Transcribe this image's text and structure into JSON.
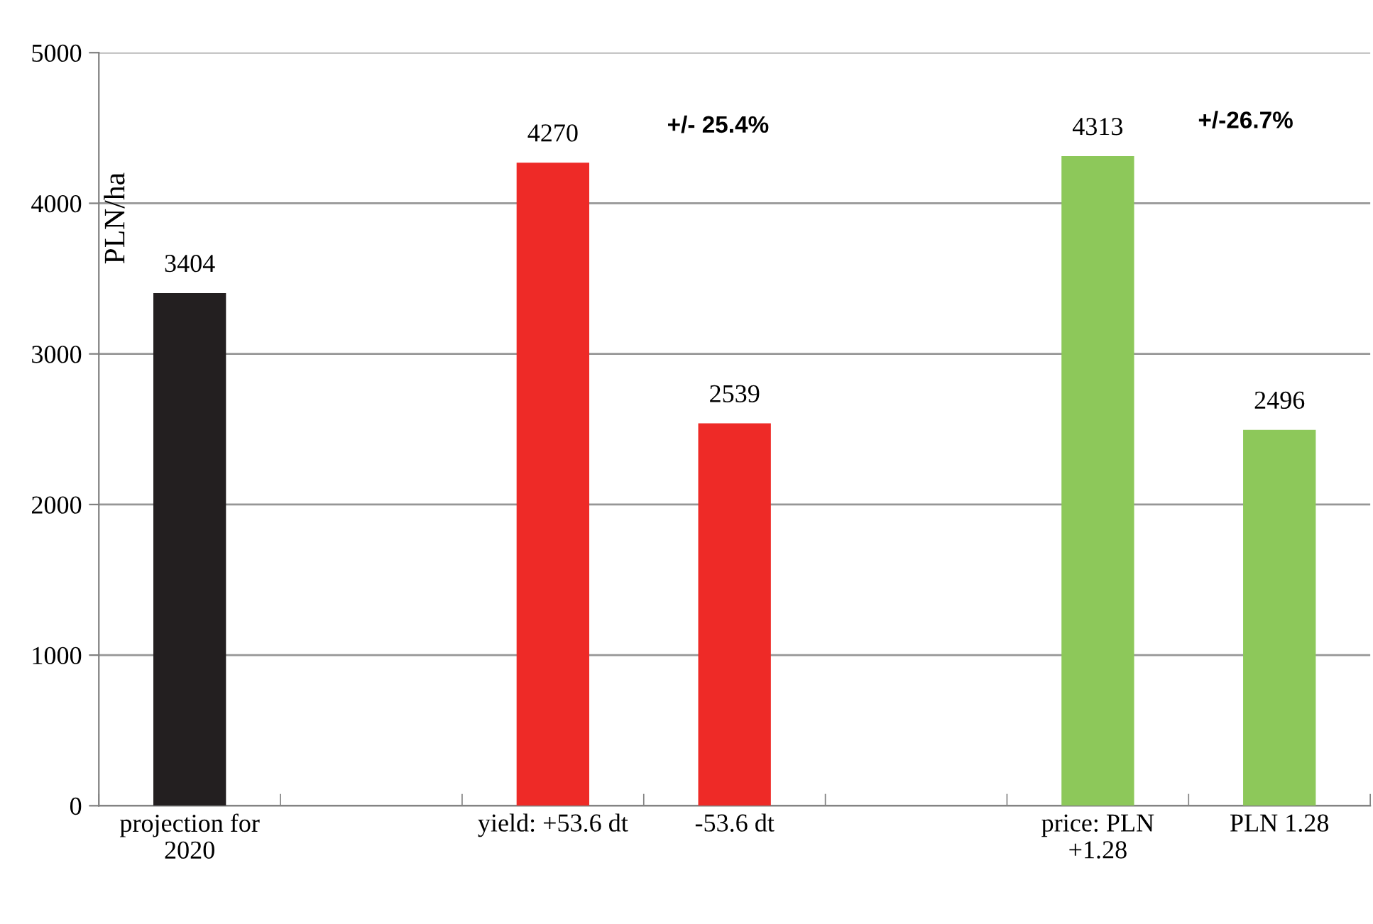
{
  "chart_data": {
    "type": "bar",
    "ylabel": "PLN/ha",
    "categories": [
      "projection for\n2020",
      null,
      "yield: +53.6 dt",
      "-53.6 dt",
      null,
      "price: PLN\n+1.28",
      "PLN 1.28"
    ],
    "values": [
      3404,
      null,
      4270,
      2539,
      null,
      4313,
      2496
    ],
    "colors": [
      "#231f20",
      null,
      "#ee2a27",
      "#ee2a27",
      null,
      "#8dc85a",
      "#8dc85a"
    ],
    "ylim": [
      0,
      5000
    ],
    "yticks": [
      0,
      1000,
      2000,
      3000,
      4000,
      5000
    ],
    "grid": "y",
    "data_labels": true,
    "annotations": [
      "+/- 25.4%",
      "+/-26.7%"
    ]
  }
}
